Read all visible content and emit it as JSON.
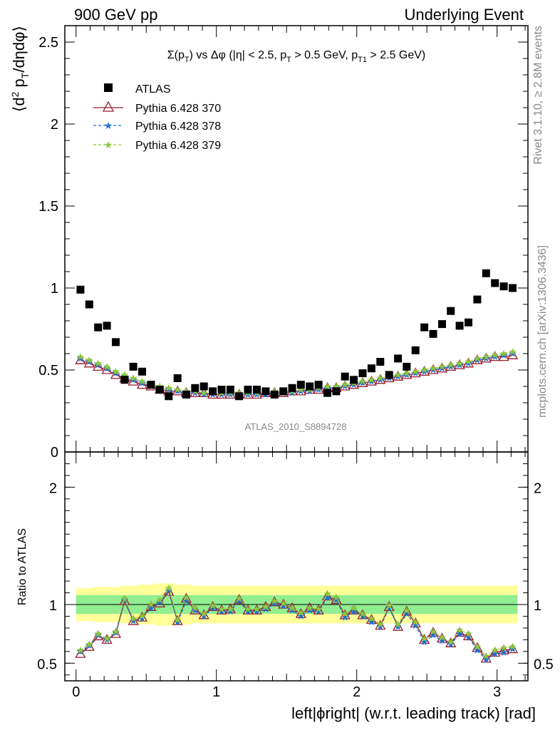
{
  "header": {
    "left": "900 GeV pp",
    "right": "Underlying Event"
  },
  "side_labels": {
    "rivet": "Rivet 3.1.10, ≥ 2.8M events",
    "mcplots": "mcplots.cern.ch [arXiv:1306.3436]"
  },
  "watermark": "ATLAS_2010_S8894728",
  "chart_data": [
    {
      "type": "scatter",
      "title": "Σ(p_T) vs Δφ (|η| < 2.5, p_T > 0.5 GeV, p_T1 > 2.5 GeV)",
      "title_parts": {
        "a": "Σ(p",
        "a_sub": "T",
        "b": ") vs Δφ (|η| < 2.5, p",
        "b_sub": "T",
        "c": " > 0.5 GeV, p",
        "c_sub": "T1",
        "d": " > 2.5 GeV)"
      },
      "ylabel": "⟨d² p_T/dηdφ⟩",
      "ylabel_parts": {
        "a": "⟨d",
        "sup": "2",
        "b": " p",
        "sub": "T",
        "c": "/dηdφ⟩"
      },
      "xlim": [
        -0.08,
        3.22
      ],
      "ylim": [
        0,
        2.6
      ],
      "y_ticks": [
        0,
        0.5,
        1,
        1.5,
        2,
        2.5
      ],
      "y_tick_labels": [
        "0",
        "0.5",
        "1",
        "1.5",
        "2",
        "2.5"
      ],
      "legend_position": "top-left",
      "x": [
        0.031,
        0.094,
        0.157,
        0.22,
        0.283,
        0.346,
        0.408,
        0.471,
        0.534,
        0.597,
        0.66,
        0.723,
        0.785,
        0.848,
        0.911,
        0.974,
        1.037,
        1.1,
        1.162,
        1.225,
        1.288,
        1.351,
        1.414,
        1.477,
        1.54,
        1.602,
        1.665,
        1.728,
        1.791,
        1.854,
        1.916,
        1.979,
        2.042,
        2.105,
        2.168,
        2.231,
        2.294,
        2.356,
        2.419,
        2.482,
        2.545,
        2.608,
        2.67,
        2.733,
        2.796,
        2.859,
        2.922,
        2.985,
        3.048,
        3.111
      ],
      "series": [
        {
          "name": "ATLAS",
          "color": "#000000",
          "marker": "square",
          "values": [
            0.99,
            0.9,
            0.76,
            0.77,
            0.67,
            0.44,
            0.52,
            0.49,
            0.41,
            0.38,
            0.34,
            0.45,
            0.35,
            0.39,
            0.4,
            0.37,
            0.38,
            0.38,
            0.34,
            0.38,
            0.38,
            0.37,
            0.35,
            0.37,
            0.39,
            0.41,
            0.4,
            0.41,
            0.36,
            0.37,
            0.46,
            0.44,
            0.48,
            0.51,
            0.55,
            0.47,
            0.57,
            0.52,
            0.62,
            0.76,
            0.72,
            0.78,
            0.86,
            0.77,
            0.79,
            0.93,
            1.09,
            1.03,
            1.01,
            1.0
          ]
        },
        {
          "name": "Pythia 6.428 370",
          "color": "#9b1b30",
          "marker": "triangle-open",
          "dash": "solid",
          "values": [
            0.56,
            0.54,
            0.52,
            0.5,
            0.47,
            0.45,
            0.43,
            0.41,
            0.4,
            0.38,
            0.37,
            0.37,
            0.36,
            0.36,
            0.36,
            0.35,
            0.35,
            0.35,
            0.35,
            0.35,
            0.35,
            0.36,
            0.36,
            0.36,
            0.37,
            0.37,
            0.38,
            0.38,
            0.39,
            0.39,
            0.4,
            0.41,
            0.42,
            0.43,
            0.44,
            0.45,
            0.46,
            0.47,
            0.48,
            0.49,
            0.5,
            0.51,
            0.52,
            0.53,
            0.54,
            0.56,
            0.57,
            0.58,
            0.58,
            0.59
          ]
        },
        {
          "name": "Pythia 6.428 378",
          "color": "#1f6fd1",
          "marker": "star",
          "dash": "dashed",
          "values": [
            0.57,
            0.55,
            0.53,
            0.51,
            0.48,
            0.46,
            0.44,
            0.42,
            0.4,
            0.39,
            0.38,
            0.37,
            0.36,
            0.36,
            0.35,
            0.35,
            0.35,
            0.35,
            0.35,
            0.35,
            0.35,
            0.35,
            0.36,
            0.36,
            0.36,
            0.37,
            0.37,
            0.38,
            0.39,
            0.39,
            0.4,
            0.41,
            0.42,
            0.43,
            0.44,
            0.45,
            0.46,
            0.47,
            0.48,
            0.49,
            0.5,
            0.51,
            0.52,
            0.53,
            0.54,
            0.56,
            0.57,
            0.58,
            0.59,
            0.6
          ]
        },
        {
          "name": "Pythia 6.428 379",
          "color": "#8cc63f",
          "marker": "star",
          "dash": "dashed",
          "values": [
            0.58,
            0.56,
            0.54,
            0.52,
            0.49,
            0.47,
            0.45,
            0.43,
            0.41,
            0.4,
            0.39,
            0.38,
            0.37,
            0.37,
            0.36,
            0.36,
            0.36,
            0.36,
            0.36,
            0.36,
            0.36,
            0.36,
            0.37,
            0.37,
            0.37,
            0.38,
            0.38,
            0.39,
            0.4,
            0.4,
            0.41,
            0.42,
            0.43,
            0.44,
            0.45,
            0.46,
            0.47,
            0.48,
            0.49,
            0.5,
            0.51,
            0.52,
            0.53,
            0.54,
            0.55,
            0.57,
            0.58,
            0.59,
            0.6,
            0.61
          ]
        }
      ]
    },
    {
      "type": "line",
      "ylabel": "Ratio to ATLAS",
      "xlabel": "left|ϕright| (w.r.t. leading track) [rad]",
      "xlim": [
        -0.08,
        3.22
      ],
      "ylim": [
        0.35,
        2.3
      ],
      "x_ticks": [
        0,
        1,
        2,
        3
      ],
      "x_tick_labels": [
        "0",
        "1",
        "2",
        "3"
      ],
      "y_ticks": [
        0.5,
        1,
        2
      ],
      "y_tick_labels": [
        "0.5",
        "1",
        "2"
      ],
      "reference_line": 1,
      "bands": {
        "stat_color": "#90ee90",
        "stat_half_width": [
          0.08,
          0.08,
          0.08,
          0.08,
          0.08,
          0.08,
          0.08,
          0.08,
          0.08,
          0.08,
          0.08,
          0.08,
          0.08,
          0.08,
          0.08,
          0.08,
          0.08,
          0.08,
          0.08,
          0.08,
          0.08,
          0.08,
          0.08,
          0.08,
          0.08,
          0.08,
          0.08,
          0.08,
          0.08,
          0.08,
          0.08,
          0.08,
          0.08,
          0.08,
          0.08,
          0.08,
          0.08,
          0.08,
          0.08,
          0.08,
          0.08,
          0.08,
          0.08,
          0.08,
          0.08,
          0.08,
          0.08,
          0.08,
          0.08,
          0.08
        ],
        "total_color": "#ffff99",
        "total_half_width": [
          0.14,
          0.14,
          0.15,
          0.15,
          0.15,
          0.16,
          0.16,
          0.17,
          0.17,
          0.18,
          0.18,
          0.17,
          0.17,
          0.16,
          0.16,
          0.16,
          0.16,
          0.16,
          0.16,
          0.16,
          0.16,
          0.16,
          0.16,
          0.16,
          0.16,
          0.16,
          0.16,
          0.16,
          0.16,
          0.16,
          0.16,
          0.16,
          0.16,
          0.16,
          0.16,
          0.16,
          0.16,
          0.16,
          0.16,
          0.16,
          0.16,
          0.16,
          0.16,
          0.16,
          0.16,
          0.16,
          0.16,
          0.16,
          0.16,
          0.16
        ]
      },
      "series": [
        {
          "name": "Pythia 6.428 370",
          "color": "#9b1b30",
          "marker": "triangle-open",
          "values": [
            0.58,
            0.64,
            0.73,
            0.7,
            0.75,
            1.03,
            0.86,
            0.89,
            0.98,
            1.01,
            1.11,
            0.86,
            1.05,
            0.95,
            0.91,
            0.98,
            0.95,
            0.96,
            1.04,
            0.95,
            0.95,
            0.98,
            1.02,
            1.0,
            0.97,
            0.92,
            0.97,
            0.95,
            1.07,
            1.04,
            0.91,
            0.95,
            0.91,
            0.87,
            0.82,
            0.98,
            0.81,
            0.94,
            0.84,
            0.7,
            0.76,
            0.71,
            0.67,
            0.76,
            0.73,
            0.63,
            0.54,
            0.59,
            0.61,
            0.62
          ]
        },
        {
          "name": "Pythia 6.428 378",
          "color": "#1f6fd1",
          "marker": "star",
          "values": [
            0.6,
            0.65,
            0.74,
            0.7,
            0.76,
            1.04,
            0.86,
            0.88,
            0.97,
            1.02,
            1.12,
            0.85,
            1.03,
            0.95,
            0.9,
            0.97,
            0.94,
            0.94,
            1.03,
            0.94,
            0.94,
            0.96,
            1.01,
            0.99,
            0.95,
            0.9,
            0.95,
            0.94,
            1.06,
            1.04,
            0.89,
            0.94,
            0.9,
            0.85,
            0.81,
            0.97,
            0.81,
            0.92,
            0.82,
            0.68,
            0.74,
            0.69,
            0.66,
            0.75,
            0.72,
            0.61,
            0.53,
            0.58,
            0.59,
            0.62
          ]
        },
        {
          "name": "Pythia 6.428 379",
          "color": "#8cc63f",
          "marker": "star",
          "values": [
            0.61,
            0.66,
            0.75,
            0.71,
            0.77,
            1.05,
            0.88,
            0.9,
            1.0,
            1.04,
            1.14,
            0.87,
            1.06,
            0.97,
            0.92,
            0.99,
            0.96,
            0.96,
            1.05,
            0.96,
            0.96,
            0.98,
            1.03,
            1.01,
            0.97,
            0.93,
            0.97,
            0.96,
            1.09,
            1.06,
            0.92,
            0.97,
            0.92,
            0.88,
            0.83,
            0.99,
            0.83,
            0.95,
            0.85,
            0.71,
            0.77,
            0.72,
            0.68,
            0.78,
            0.75,
            0.64,
            0.56,
            0.61,
            0.63,
            0.64
          ]
        }
      ]
    }
  ]
}
